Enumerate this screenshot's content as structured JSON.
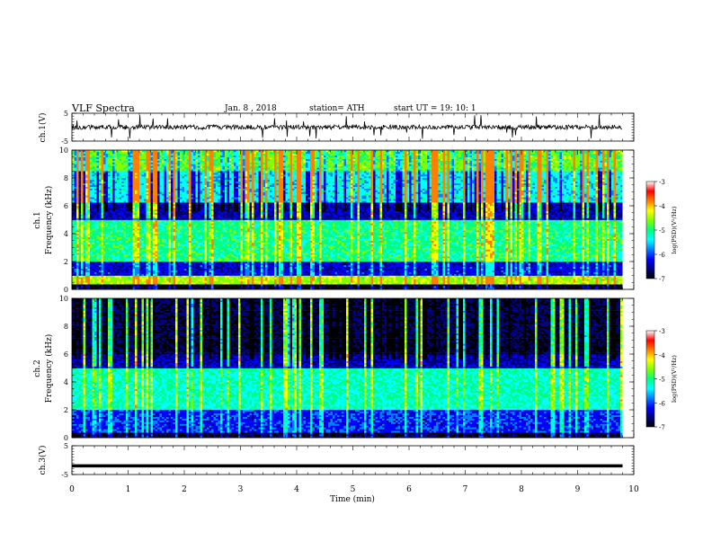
{
  "header": {
    "title": "VLF  Spectra",
    "date": "Jan.  8  , 2018",
    "station": "station= ATH",
    "start": "start  UT  =    19: 10: 1"
  },
  "colors": {
    "scale": [
      "#000000",
      "#00007f",
      "#0000ff",
      "#0080ff",
      "#00ffff",
      "#00ff80",
      "#80ff00",
      "#ffff00",
      "#ff8000",
      "#ff0000",
      "#ffffff"
    ],
    "axis": "#000000",
    "trace": "#000000"
  },
  "chart_data": [
    {
      "type": "line",
      "id": "ch1-waveform",
      "ylabel": "ch.1(V)",
      "ylim": [
        -5,
        5
      ],
      "yticks": [
        "5",
        "-5"
      ],
      "xlim": [
        0,
        10
      ],
      "series": [
        {
          "values_desc": "noisy baseline near 0 V with sferic spikes",
          "level": 0
        }
      ]
    },
    {
      "type": "heatmap",
      "id": "ch1-spectrogram",
      "ylabel": "ch.1\nFrequency  (kHz)",
      "ylim": [
        0,
        10
      ],
      "yticks": [
        "0",
        "2",
        "4",
        "6",
        "8",
        "10"
      ],
      "xlim": [
        0,
        9.8
      ],
      "bands": [
        {
          "f": [
            0.0,
            0.3
          ],
          "level": 0.05
        },
        {
          "f": [
            0.3,
            0.9
          ],
          "level": 0.75
        },
        {
          "f": [
            0.9,
            2.0
          ],
          "level": 0.25
        },
        {
          "f": [
            2.0,
            5.0
          ],
          "level": 0.6
        },
        {
          "f": [
            5.0,
            6.2
          ],
          "level": 0.2
        },
        {
          "f": [
            6.2,
            8.5
          ],
          "level": 0.5
        },
        {
          "f": [
            8.5,
            10.0
          ],
          "level": 0.7
        }
      ]
    },
    {
      "type": "heatmap",
      "id": "ch2-spectrogram",
      "ylabel": "ch.2\nFrequency  (kHz)",
      "ylim": [
        0,
        10
      ],
      "yticks": [
        "0",
        "2",
        "4",
        "6",
        "8",
        "10"
      ],
      "xlim": [
        0,
        9.8
      ],
      "bands": [
        {
          "f": [
            0.0,
            0.3
          ],
          "level": 0.1
        },
        {
          "f": [
            0.3,
            2.0
          ],
          "level": 0.3
        },
        {
          "f": [
            2.0,
            5.0
          ],
          "level": 0.55
        },
        {
          "f": [
            5.0,
            6.0
          ],
          "level": 0.2
        },
        {
          "f": [
            6.0,
            7.5
          ],
          "level": 0.1
        },
        {
          "f": [
            7.5,
            10.0
          ],
          "level": 0.12
        }
      ]
    },
    {
      "type": "line",
      "id": "ch3-waveform",
      "ylabel": "ch.3(V)",
      "ylim": [
        -5,
        5
      ],
      "yticks": [
        "5",
        "-5"
      ],
      "xlim": [
        0,
        10
      ],
      "xticks": [
        "0",
        "1",
        "2",
        "3",
        "4",
        "5",
        "6",
        "7",
        "8",
        "9",
        "10"
      ],
      "xlabel": "Time  (min)",
      "series": [
        {
          "values_desc": "flat thick trace near -2 V",
          "level": -2
        }
      ]
    }
  ],
  "colorbars": [
    {
      "id": "cbar-ch1",
      "ticks": [
        "-3",
        "-4",
        "-5",
        "-6",
        "-7"
      ],
      "label": "log(PSD)(V²/Hz)"
    },
    {
      "id": "cbar-ch2",
      "ticks": [
        "-3",
        "-4",
        "-5",
        "-6",
        "-7"
      ],
      "label": "log(PSD)(V²/Hz)"
    }
  ]
}
